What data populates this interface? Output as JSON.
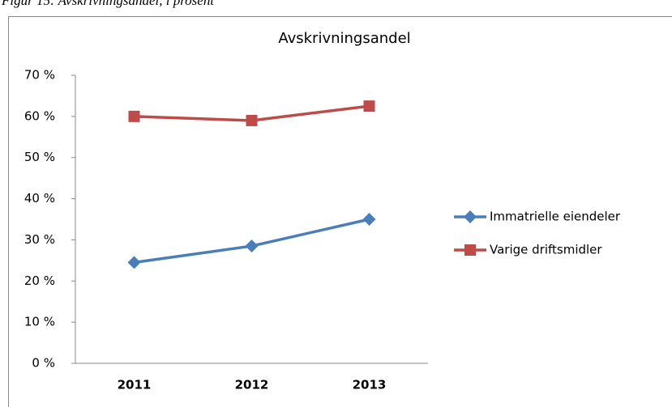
{
  "caption": "Figur 15: Avskrivningsandel, i prosent",
  "chart_data": {
    "type": "line",
    "title": "Avskrivningsandel",
    "categories": [
      "2011",
      "2012",
      "2013"
    ],
    "series": [
      {
        "name": "Immatrielle eiendeler",
        "color": "#4a7ebb",
        "marker": "diamond",
        "values": [
          24.5,
          28.5,
          35
        ]
      },
      {
        "name": "Varige driftsmidler",
        "color": "#be4b48",
        "marker": "square",
        "values": [
          60,
          59,
          62.5
        ]
      }
    ],
    "ylim": [
      0,
      70
    ],
    "yticks": [
      {
        "value": 0,
        "label": "0 %"
      },
      {
        "value": 10,
        "label": "10 %"
      },
      {
        "value": 20,
        "label": "20 %"
      },
      {
        "value": 30,
        "label": "30 %"
      },
      {
        "value": 40,
        "label": "40 %"
      },
      {
        "value": 50,
        "label": "50 %"
      },
      {
        "value": 60,
        "label": "60 %"
      },
      {
        "value": 70,
        "label": "70 %"
      }
    ],
    "grid": false,
    "legend": "right"
  }
}
